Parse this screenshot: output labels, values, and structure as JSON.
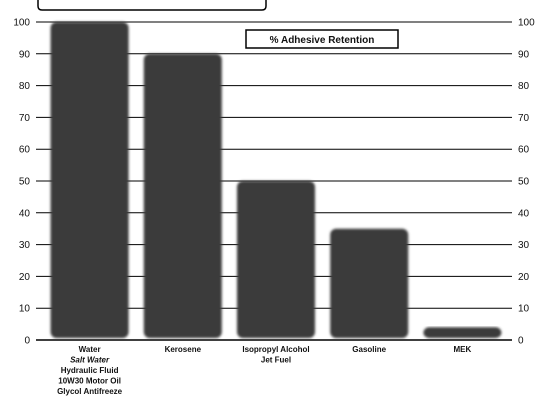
{
  "chart_data": {
    "type": "bar",
    "legend": "% Adhesive Retention",
    "legend_position": "top-right",
    "ylim": [
      0,
      100
    ],
    "yticks": [
      0,
      10,
      20,
      30,
      40,
      50,
      60,
      70,
      80,
      90,
      100
    ],
    "grid": true,
    "categories": [
      [
        "Water",
        "Salt Water",
        "Hydraulic Fluid",
        "10W30 Motor Oil",
        "Glycol Antifreeze"
      ],
      [
        "Kerosene"
      ],
      [
        "Isopropyl Alcohol",
        "Jet Fuel"
      ],
      [
        "Gasoline"
      ],
      [
        "MEK"
      ]
    ],
    "values": [
      100,
      90,
      50,
      35,
      4
    ],
    "colors": {
      "bar": "#3a3a3a",
      "grid": "#000000"
    }
  }
}
